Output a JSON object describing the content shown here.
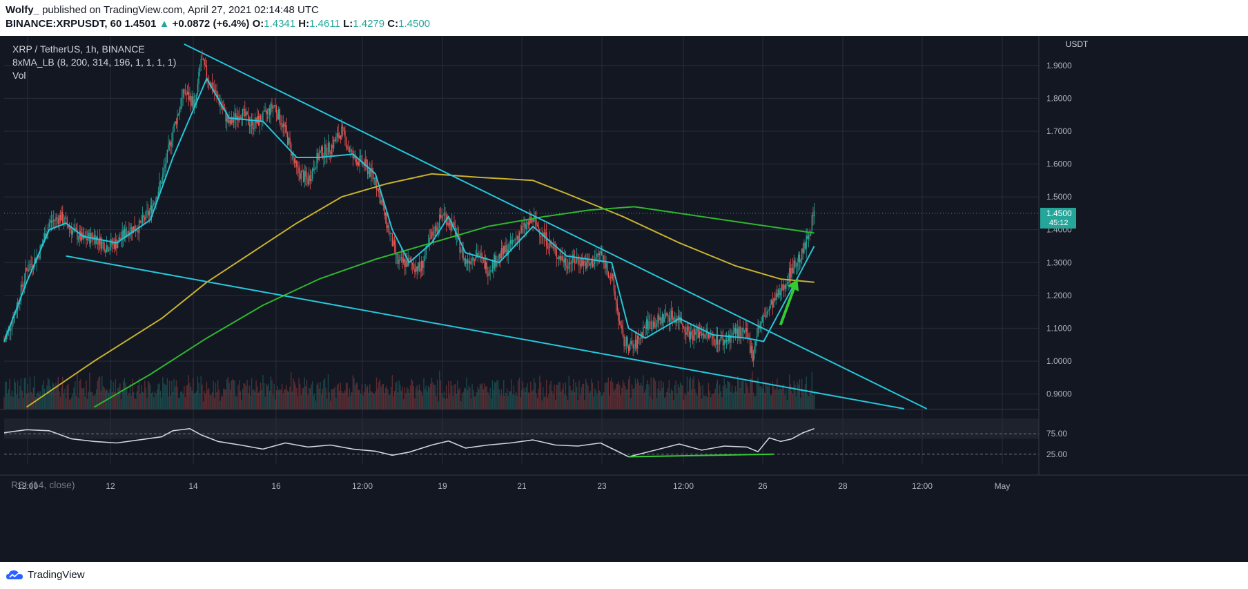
{
  "header": {
    "author": "Wolfy_",
    "published_text": "published on TradingView.com, April 27, 2021 02:14:48 UTC",
    "symbol": "BINANCE:XRPUSDT, 60",
    "last": "1.4501",
    "change_arrow": "▲",
    "change": "+0.0872 (+6.4%)",
    "o_label": "O:",
    "o_val": "1.4341",
    "h_label": "H:",
    "h_val": "1.4611",
    "l_label": "L:",
    "l_val": "1.4279",
    "c_label": "C:",
    "c_val": "1.4500"
  },
  "legend": {
    "title": "XRP / TetherUS, 1h, BINANCE",
    "ma": "8xMA_LB (8, 200, 314, 196, 1, 1, 1, 1)",
    "vol": "Vol",
    "rsi": "RSI (14, close)"
  },
  "footer": {
    "brand": "TradingView"
  },
  "colors": {
    "background": "#131722",
    "up": "#26a69a",
    "down": "#ef5350",
    "ma_fast": "#26c6da",
    "ma_yellow": "#c9b22e",
    "ma_green": "#2db82d",
    "trendline": "#26c6da",
    "rsi": "#d1d4dc",
    "annotation": "#33cc33"
  },
  "chart_data": {
    "type": "candlestick",
    "currency_label": "USDT",
    "price_ticks": [
      "1.9000",
      "1.8000",
      "1.7000",
      "1.6000",
      "1.5000",
      "1.4000",
      "1.3000",
      "1.2000",
      "1.1000",
      "1.0000",
      "0.9000"
    ],
    "ylim": [
      0.855,
      1.99
    ],
    "last_price_label": "1.4500",
    "countdown_label": "45:12",
    "time_ticks": [
      "12:00",
      "12",
      "14",
      "16",
      "12:00",
      "19",
      "21",
      "23",
      "12:00",
      "26",
      "28",
      "12:00",
      "May"
    ],
    "rsi_ticks": [
      "75.00",
      "25.00"
    ],
    "rsi_levels": [
      70,
      30
    ],
    "price_path": [
      [
        0,
        1.06
      ],
      [
        10,
        1.15
      ],
      [
        20,
        1.28
      ],
      [
        30,
        1.32
      ],
      [
        40,
        1.42
      ],
      [
        50,
        1.44
      ],
      [
        60,
        1.4
      ],
      [
        70,
        1.37
      ],
      [
        80,
        1.38
      ],
      [
        90,
        1.35
      ],
      [
        100,
        1.36
      ],
      [
        110,
        1.4
      ],
      [
        120,
        1.41
      ],
      [
        130,
        1.46
      ],
      [
        140,
        1.55
      ],
      [
        150,
        1.7
      ],
      [
        160,
        1.82
      ],
      [
        170,
        1.78
      ],
      [
        175,
        1.92
      ],
      [
        180,
        1.87
      ],
      [
        190,
        1.8
      ],
      [
        200,
        1.72
      ],
      [
        210,
        1.76
      ],
      [
        220,
        1.72
      ],
      [
        230,
        1.74
      ],
      [
        240,
        1.78
      ],
      [
        250,
        1.7
      ],
      [
        260,
        1.58
      ],
      [
        270,
        1.55
      ],
      [
        280,
        1.63
      ],
      [
        290,
        1.65
      ],
      [
        300,
        1.7
      ],
      [
        310,
        1.62
      ],
      [
        320,
        1.6
      ],
      [
        330,
        1.55
      ],
      [
        340,
        1.42
      ],
      [
        350,
        1.3
      ],
      [
        360,
        1.3
      ],
      [
        370,
        1.28
      ],
      [
        380,
        1.38
      ],
      [
        390,
        1.45
      ],
      [
        400,
        1.4
      ],
      [
        410,
        1.3
      ],
      [
        420,
        1.33
      ],
      [
        430,
        1.28
      ],
      [
        440,
        1.32
      ],
      [
        450,
        1.35
      ],
      [
        460,
        1.4
      ],
      [
        470,
        1.43
      ],
      [
        480,
        1.38
      ],
      [
        490,
        1.33
      ],
      [
        500,
        1.3
      ],
      [
        510,
        1.31
      ],
      [
        520,
        1.29
      ],
      [
        530,
        1.33
      ],
      [
        540,
        1.25
      ],
      [
        550,
        1.06
      ],
      [
        560,
        1.04
      ],
      [
        570,
        1.11
      ],
      [
        580,
        1.12
      ],
      [
        590,
        1.14
      ],
      [
        600,
        1.13
      ],
      [
        610,
        1.08
      ],
      [
        620,
        1.09
      ],
      [
        630,
        1.07
      ],
      [
        640,
        1.06
      ],
      [
        650,
        1.09
      ],
      [
        660,
        1.08
      ],
      [
        665,
        1.02
      ],
      [
        670,
        1.1
      ],
      [
        680,
        1.16
      ],
      [
        690,
        1.21
      ],
      [
        700,
        1.28
      ],
      [
        710,
        1.33
      ],
      [
        720,
        1.45
      ]
    ],
    "ma_fast_path": [
      [
        0,
        1.06
      ],
      [
        20,
        1.24
      ],
      [
        40,
        1.4
      ],
      [
        55,
        1.42
      ],
      [
        70,
        1.38
      ],
      [
        100,
        1.36
      ],
      [
        130,
        1.43
      ],
      [
        150,
        1.62
      ],
      [
        170,
        1.78
      ],
      [
        180,
        1.86
      ],
      [
        200,
        1.74
      ],
      [
        230,
        1.73
      ],
      [
        260,
        1.62
      ],
      [
        280,
        1.62
      ],
      [
        310,
        1.63
      ],
      [
        330,
        1.57
      ],
      [
        345,
        1.4
      ],
      [
        360,
        1.3
      ],
      [
        380,
        1.36
      ],
      [
        395,
        1.44
      ],
      [
        410,
        1.33
      ],
      [
        440,
        1.3
      ],
      [
        470,
        1.41
      ],
      [
        500,
        1.32
      ],
      [
        540,
        1.3
      ],
      [
        555,
        1.1
      ],
      [
        570,
        1.07
      ],
      [
        600,
        1.13
      ],
      [
        630,
        1.08
      ],
      [
        660,
        1.07
      ],
      [
        675,
        1.06
      ],
      [
        700,
        1.22
      ],
      [
        720,
        1.35
      ]
    ],
    "ma_yellow_path": [
      [
        20,
        0.86
      ],
      [
        80,
        1.0
      ],
      [
        140,
        1.13
      ],
      [
        180,
        1.24
      ],
      [
        220,
        1.33
      ],
      [
        260,
        1.42
      ],
      [
        300,
        1.5
      ],
      [
        340,
        1.54
      ],
      [
        380,
        1.57
      ],
      [
        420,
        1.56
      ],
      [
        470,
        1.55
      ],
      [
        500,
        1.51
      ],
      [
        550,
        1.44
      ],
      [
        600,
        1.36
      ],
      [
        650,
        1.29
      ],
      [
        690,
        1.25
      ],
      [
        720,
        1.24
      ]
    ],
    "ma_green_path": [
      [
        80,
        0.86
      ],
      [
        130,
        0.96
      ],
      [
        180,
        1.07
      ],
      [
        230,
        1.17
      ],
      [
        280,
        1.25
      ],
      [
        330,
        1.31
      ],
      [
        380,
        1.36
      ],
      [
        430,
        1.41
      ],
      [
        480,
        1.44
      ],
      [
        520,
        1.46
      ],
      [
        560,
        1.47
      ],
      [
        600,
        1.45
      ],
      [
        660,
        1.42
      ],
      [
        700,
        1.4
      ],
      [
        720,
        1.39
      ]
    ],
    "rsi_path": [
      [
        0,
        72
      ],
      [
        20,
        78
      ],
      [
        40,
        76
      ],
      [
        60,
        60
      ],
      [
        80,
        55
      ],
      [
        100,
        52
      ],
      [
        120,
        58
      ],
      [
        140,
        64
      ],
      [
        150,
        76
      ],
      [
        165,
        80
      ],
      [
        175,
        68
      ],
      [
        190,
        55
      ],
      [
        210,
        48
      ],
      [
        230,
        40
      ],
      [
        250,
        52
      ],
      [
        270,
        44
      ],
      [
        290,
        48
      ],
      [
        310,
        40
      ],
      [
        330,
        36
      ],
      [
        345,
        28
      ],
      [
        360,
        34
      ],
      [
        380,
        48
      ],
      [
        395,
        56
      ],
      [
        410,
        42
      ],
      [
        430,
        48
      ],
      [
        450,
        52
      ],
      [
        470,
        58
      ],
      [
        490,
        48
      ],
      [
        510,
        46
      ],
      [
        530,
        52
      ],
      [
        545,
        36
      ],
      [
        555,
        25
      ],
      [
        575,
        36
      ],
      [
        600,
        50
      ],
      [
        620,
        38
      ],
      [
        640,
        46
      ],
      [
        660,
        44
      ],
      [
        670,
        35
      ],
      [
        680,
        62
      ],
      [
        690,
        55
      ],
      [
        700,
        60
      ],
      [
        710,
        72
      ],
      [
        720,
        80
      ]
    ],
    "trendlines": [
      {
        "from": [
          160,
          1.965
        ],
        "to": [
          820,
          0.855
        ]
      },
      {
        "from": [
          55,
          1.32
        ],
        "to": [
          800,
          0.855
        ]
      }
    ],
    "rsi_divergence": {
      "from": [
        555,
        25
      ],
      "to": [
        684,
        30
      ]
    },
    "arrow": {
      "from": [
        690,
        1.11
      ],
      "to": [
        705,
        1.25
      ]
    }
  }
}
